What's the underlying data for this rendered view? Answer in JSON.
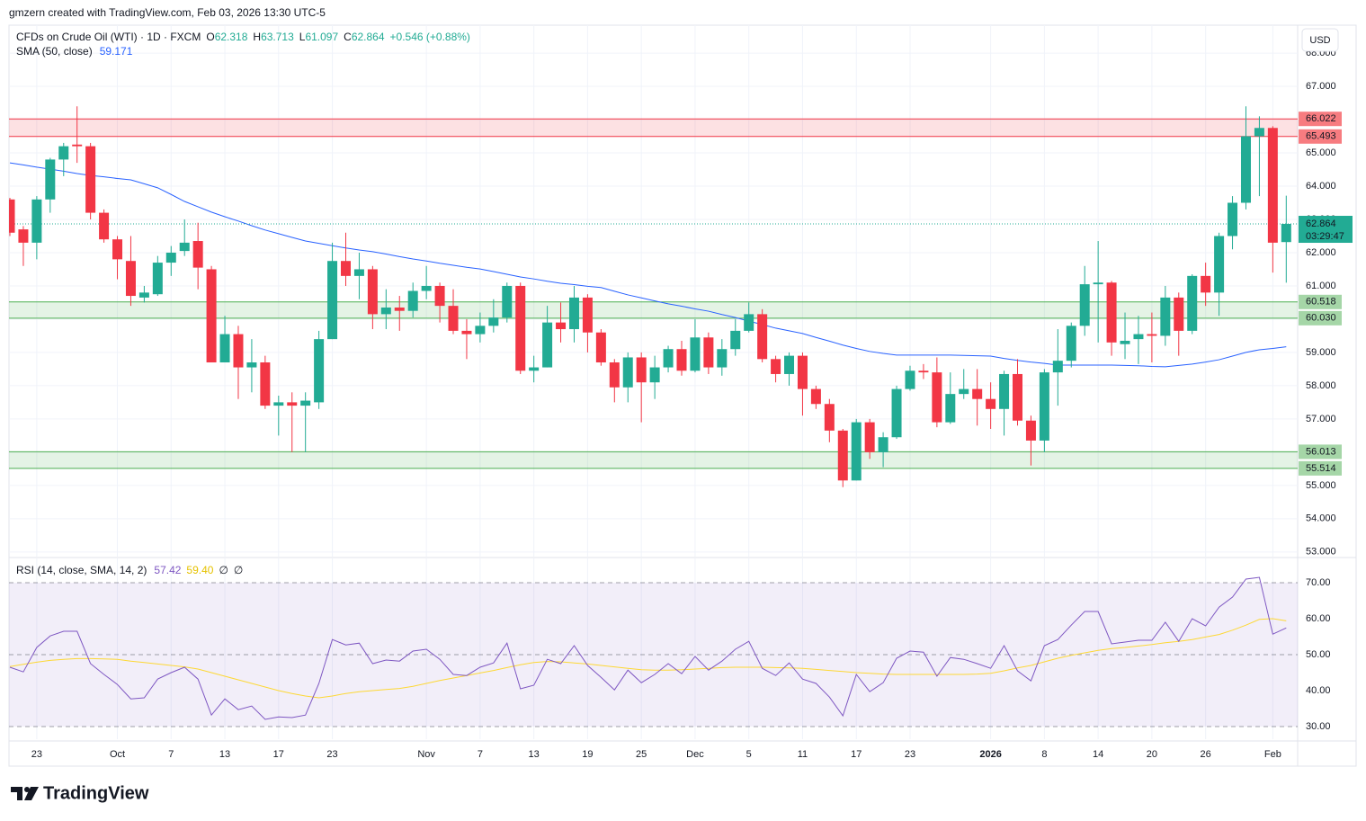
{
  "header": "gmzern created with TradingView.com, Feb 03, 2026 13:30 UTC-5",
  "brand": "TradingView",
  "currency": "USD",
  "chart_data": [
    {
      "type": "candlestick",
      "title": "CFDs on Crude Oil (WTI) · 1D · FXCM",
      "ohlc_legend": [
        {
          "key": "O",
          "value": 62.318
        },
        {
          "key": "H",
          "value": 63.713
        },
        {
          "key": "L",
          "value": 61.097
        },
        {
          "key": "C",
          "value": 62.864
        }
      ],
      "change": "+0.546 (+0.88%)",
      "countdown": "03:29:47",
      "up_color": "#22ab94",
      "down_color": "#f23645",
      "categories": [
        null,
        null,
        "23",
        null,
        null,
        null,
        null,
        null,
        "Oct",
        null,
        null,
        null,
        "7",
        null,
        null,
        null,
        "13",
        null,
        null,
        null,
        "17",
        null,
        null,
        null,
        "23",
        null,
        null,
        null,
        null,
        null,
        null,
        "Nov",
        null,
        null,
        null,
        "7",
        null,
        null,
        null,
        "13",
        null,
        null,
        null,
        "19",
        null,
        null,
        null,
        "25",
        null,
        null,
        null,
        "Dec",
        null,
        null,
        null,
        "5",
        null,
        null,
        null,
        "11",
        null,
        null,
        null,
        "17",
        null,
        null,
        null,
        "23",
        null,
        null,
        null,
        null,
        null,
        "2026",
        null,
        null,
        null,
        "8",
        null,
        null,
        null,
        "14",
        null,
        null,
        null,
        "20",
        null,
        null,
        null,
        "26",
        null,
        null,
        null,
        null,
        "Feb",
        null
      ],
      "open": [
        63.6,
        62.7,
        62.3,
        63.6,
        64.8,
        65.25,
        65.2,
        63.2,
        62.4,
        61.75,
        60.65,
        60.75,
        61.7,
        62.05,
        62.35,
        61.5,
        58.7,
        59.55,
        58.55,
        58.7,
        57.4,
        57.5,
        57.4,
        57.5,
        59.4,
        61.75,
        61.3,
        61.5,
        60.15,
        60.35,
        60.25,
        60.85,
        61.0,
        60.4,
        59.65,
        59.55,
        59.8,
        60.05,
        61.0,
        58.45,
        58.55,
        59.9,
        59.7,
        60.65,
        59.6,
        58.7,
        57.95,
        58.85,
        58.1,
        58.55,
        59.1,
        58.45,
        59.45,
        58.55,
        59.1,
        59.65,
        60.15,
        58.8,
        58.35,
        58.9,
        57.9,
        57.45,
        56.65,
        55.15,
        56.9,
        56.0,
        56.45,
        57.9,
        58.45,
        58.4,
        56.9,
        57.75,
        57.9,
        57.6,
        57.3,
        58.35,
        56.95,
        56.35,
        58.4,
        58.75,
        59.8,
        61.05,
        61.1,
        59.25,
        59.4,
        59.55,
        59.5,
        60.65,
        59.65,
        61.3,
        60.8,
        62.5,
        63.5,
        65.5,
        65.75,
        62.318
      ],
      "high": [
        63.65,
        62.8,
        63.7,
        64.85,
        65.3,
        66.4,
        65.3,
        63.3,
        62.5,
        62.5,
        61.0,
        61.9,
        62.2,
        63.0,
        62.9,
        61.6,
        60.1,
        59.8,
        59.4,
        58.9,
        57.7,
        57.8,
        57.8,
        59.65,
        62.3,
        62.6,
        62.0,
        61.6,
        60.9,
        60.7,
        61.1,
        61.6,
        61.1,
        60.9,
        60.0,
        60.2,
        60.6,
        61.1,
        61.1,
        58.9,
        60.4,
        60.5,
        61.0,
        60.75,
        59.7,
        58.8,
        59.0,
        59.0,
        58.9,
        59.2,
        59.35,
        60.0,
        59.6,
        59.4,
        60.0,
        60.5,
        60.3,
        58.9,
        59.0,
        59.0,
        58.0,
        57.6,
        56.7,
        57.0,
        57.0,
        56.6,
        58.0,
        58.6,
        58.65,
        58.85,
        58.4,
        58.5,
        58.5,
        58.1,
        58.45,
        58.8,
        57.1,
        58.5,
        59.7,
        59.9,
        61.6,
        62.35,
        61.15,
        60.2,
        60.1,
        60.2,
        61.0,
        60.8,
        61.35,
        61.7,
        62.6,
        63.7,
        66.4,
        66.1,
        65.8,
        63.713
      ],
      "low": [
        62.5,
        61.6,
        61.8,
        63.2,
        64.3,
        64.7,
        63.0,
        62.3,
        61.2,
        60.4,
        60.5,
        60.7,
        61.3,
        61.9,
        60.9,
        58.7,
        58.7,
        57.6,
        57.8,
        57.3,
        56.5,
        56.0,
        56.0,
        57.3,
        59.4,
        61.0,
        60.6,
        59.7,
        59.7,
        59.65,
        60.05,
        60.6,
        59.9,
        59.55,
        58.8,
        59.3,
        59.6,
        59.9,
        58.35,
        58.1,
        58.55,
        59.3,
        59.3,
        59.0,
        58.6,
        57.5,
        57.5,
        56.9,
        57.6,
        58.4,
        58.3,
        58.4,
        58.35,
        58.3,
        58.9,
        59.6,
        58.7,
        58.1,
        58.0,
        57.1,
        57.3,
        56.3,
        54.95,
        55.15,
        55.8,
        55.55,
        56.4,
        57.85,
        58.2,
        56.75,
        56.85,
        57.6,
        56.8,
        56.7,
        56.5,
        56.8,
        55.6,
        56.0,
        57.4,
        58.55,
        59.5,
        59.3,
        58.9,
        58.8,
        58.65,
        58.7,
        59.2,
        58.9,
        59.55,
        60.4,
        60.1,
        62.1,
        63.3,
        63.7,
        61.4,
        61.097
      ],
      "close": [
        62.6,
        62.3,
        63.6,
        64.8,
        65.2,
        65.2,
        63.2,
        62.4,
        61.8,
        60.7,
        60.8,
        61.7,
        62.0,
        62.3,
        61.55,
        58.7,
        59.55,
        58.55,
        58.7,
        57.4,
        57.5,
        57.4,
        57.55,
        59.4,
        61.75,
        61.3,
        61.5,
        60.15,
        60.35,
        60.25,
        60.85,
        61.0,
        60.4,
        59.65,
        59.55,
        59.8,
        60.05,
        61.0,
        58.45,
        58.55,
        59.9,
        59.7,
        60.65,
        59.6,
        58.7,
        57.95,
        58.85,
        58.1,
        58.55,
        59.1,
        58.45,
        59.45,
        58.55,
        59.1,
        59.65,
        60.15,
        58.8,
        58.35,
        58.9,
        57.9,
        57.45,
        56.65,
        55.15,
        56.9,
        56.0,
        56.45,
        57.9,
        58.45,
        58.4,
        56.9,
        57.75,
        57.9,
        57.6,
        57.3,
        58.35,
        56.95,
        56.35,
        58.4,
        58.75,
        59.8,
        61.05,
        61.1,
        59.3,
        59.35,
        59.55,
        59.5,
        60.65,
        59.65,
        61.3,
        60.8,
        62.5,
        63.5,
        65.5,
        65.75,
        62.3,
        62.864
      ],
      "sma": {
        "name": "SMA (50, close)",
        "color": "#2962ff",
        "values": [
          64.7,
          64.64,
          64.57,
          64.51,
          64.45,
          64.38,
          64.32,
          64.28,
          64.23,
          64.19,
          64.07,
          63.95,
          63.75,
          63.54,
          63.38,
          63.22,
          63.08,
          62.95,
          62.81,
          62.68,
          62.57,
          62.46,
          62.35,
          62.28,
          62.21,
          62.14,
          62.08,
          62.03,
          61.96,
          61.88,
          61.81,
          61.75,
          61.68,
          61.62,
          61.56,
          61.51,
          61.43,
          61.35,
          61.27,
          61.21,
          61.14,
          61.08,
          61.04,
          60.99,
          60.95,
          60.84,
          60.73,
          60.64,
          60.55,
          60.46,
          60.39,
          60.31,
          60.24,
          60.14,
          60.05,
          59.94,
          59.84,
          59.73,
          59.65,
          59.57,
          59.45,
          59.34,
          59.22,
          59.12,
          59.03,
          58.97,
          58.92,
          58.92,
          58.92,
          58.92,
          58.92,
          58.91,
          58.9,
          58.89,
          58.82,
          58.76,
          58.71,
          58.67,
          58.62,
          58.62,
          58.62,
          58.62,
          58.62,
          58.61,
          58.6,
          58.58,
          58.57,
          58.61,
          58.65,
          58.71,
          58.78,
          58.89,
          59.0,
          59.08,
          59.12,
          59.171
        ]
      },
      "zones": [
        {
          "color": "#f23645",
          "label_color": "#f77c80",
          "text_color": "#ffffff",
          "high": {
            "value": 66.022,
            "label": "66.022"
          },
          "low": {
            "value": 65.493,
            "label": "65.493"
          }
        },
        {
          "color": "#4caf50",
          "label_color": "#a5d6a7",
          "text_color": "#131722",
          "high": {
            "value": 60.518,
            "label": "60.518"
          },
          "low": {
            "value": 60.03,
            "label": "60.030"
          }
        },
        {
          "color": "#4caf50",
          "label_color": "#a5d6a7",
          "text_color": "#131722",
          "high": {
            "value": 56.013,
            "label": "56.013"
          },
          "low": {
            "value": 55.514,
            "label": "55.514"
          }
        }
      ],
      "ylim": [
        52.86,
        68.84
      ],
      "yticks": [
        {
          "value": 53,
          "label": "53.000"
        },
        {
          "value": 54,
          "label": "54.000"
        },
        {
          "value": 55,
          "label": "55.000"
        },
        {
          "value": 56,
          "label": "56.000"
        },
        {
          "value": 57,
          "label": "57.000"
        },
        {
          "value": 58,
          "label": "58.000"
        },
        {
          "value": 59,
          "label": "59.000"
        },
        {
          "value": 60,
          "label": "60.000"
        },
        {
          "value": 61,
          "label": "61.000"
        },
        {
          "value": 62,
          "label": "62.000"
        },
        {
          "value": 63,
          "label": "63.000"
        },
        {
          "value": 64,
          "label": "64.000"
        },
        {
          "value": 65,
          "label": "65.000"
        },
        {
          "value": 66,
          "label": "66.000"
        },
        {
          "value": 67,
          "label": "67.000"
        },
        {
          "value": 68,
          "label": "68.000"
        }
      ],
      "grid": true
    },
    {
      "type": "line",
      "title": "RSI (14, close, SMA, 14, 2)",
      "flags": [
        "∅",
        "∅"
      ],
      "series": [
        {
          "name": "RSI",
          "color": "#7e57c2",
          "value_label": "57.42",
          "values": [
            46.5,
            45.2,
            52,
            55.2,
            56.5,
            56.5,
            47.5,
            44.5,
            41.7,
            37.7,
            38,
            43.2,
            45,
            46.5,
            43.2,
            33.2,
            37.7,
            34.7,
            35.7,
            32,
            32.7,
            32.5,
            33.2,
            42,
            54.2,
            52.7,
            53.2,
            47.5,
            48.5,
            48.2,
            51,
            51.5,
            48.7,
            44.5,
            44.2,
            46.5,
            47.7,
            53.2,
            40.5,
            41.5,
            48.7,
            47.5,
            52.5,
            47,
            43.7,
            40.2,
            45.7,
            42.2,
            44.5,
            47.5,
            44.7,
            49.5,
            45.7,
            48.2,
            51.5,
            53.7,
            46.2,
            44.2,
            47.7,
            43.2,
            42,
            38.2,
            33,
            44.5,
            39.7,
            42.2,
            49,
            51,
            50.7,
            44,
            49.2,
            48.7,
            47.5,
            46.2,
            52.5,
            45.5,
            42.7,
            52.5,
            54.2,
            58.2,
            62,
            62,
            53,
            53.5,
            54,
            54,
            59,
            53.7,
            60,
            58,
            63.2,
            66,
            71,
            71.5,
            55.7,
            57.42
          ]
        },
        {
          "name": "RSI-based MA",
          "color": "#fdd835",
          "value_label": "59.40",
          "values": [
            46.7,
            47.3,
            47.9,
            48.4,
            48.7,
            48.9,
            48.9,
            48.8,
            48.7,
            48.2,
            47.8,
            47.4,
            47.0,
            46.6,
            46.0,
            45.0,
            44.0,
            43.0,
            42.0,
            41.0,
            40.0,
            39.2,
            38.5,
            38.0,
            38.5,
            39.2,
            39.7,
            40.0,
            40.3,
            40.6,
            41.2,
            42.0,
            42.8,
            43.5,
            44.2,
            44.9,
            45.6,
            46.4,
            47.2,
            47.8,
            48.1,
            48.0,
            47.7,
            47.4,
            47.0,
            46.6,
            46.2,
            45.8,
            45.7,
            45.7,
            45.8,
            46.0,
            46.2,
            46.4,
            46.5,
            46.5,
            46.5,
            46.4,
            46.3,
            46.2,
            45.9,
            45.6,
            45.3,
            45.0,
            44.8,
            44.6,
            44.5,
            44.5,
            44.5,
            44.5,
            44.5,
            44.5,
            44.6,
            44.8,
            45.5,
            46.3,
            47.0,
            48.0,
            49.0,
            49.8,
            50.5,
            51.2,
            51.7,
            52.0,
            52.4,
            52.8,
            53.3,
            53.7,
            54.2,
            54.9,
            55.6,
            56.8,
            58.2,
            59.8,
            60.0,
            59.4
          ]
        }
      ],
      "band": [
        30,
        70
      ],
      "dashed": [
        70,
        50,
        30
      ],
      "ylim": [
        26.5,
        76.75
      ],
      "yticks": [
        {
          "value": 30,
          "label": "30.00"
        },
        {
          "value": 40,
          "label": "40.00"
        },
        {
          "value": 50,
          "label": "50.00"
        },
        {
          "value": 60,
          "label": "60.00"
        },
        {
          "value": 70,
          "label": "70.00"
        }
      ]
    }
  ]
}
